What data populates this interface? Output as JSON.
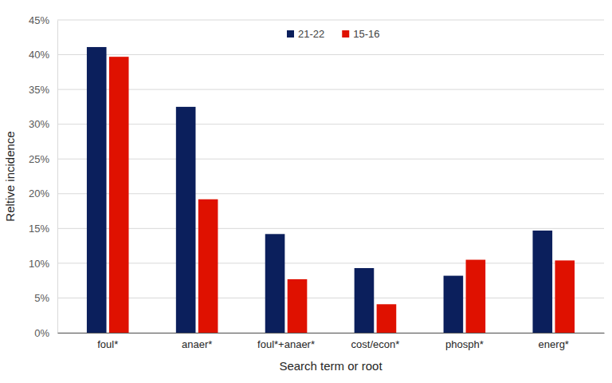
{
  "chart_data": {
    "type": "bar",
    "categories": [
      "foul*",
      "anaer*",
      "foul*+anaer*",
      "cost/econ*",
      "phosph*",
      "energ*"
    ],
    "series": [
      {
        "name": "21-22",
        "color": "#0b1f5c",
        "values": [
          41.1,
          32.5,
          14.2,
          9.3,
          8.2,
          14.7
        ]
      },
      {
        "name": "15-16",
        "color": "#df1100",
        "values": [
          39.7,
          19.2,
          7.7,
          4.1,
          10.5,
          10.4
        ]
      }
    ],
    "x_label": "Search term or root",
    "y_label": "Reltive incidence",
    "ylim": [
      0,
      45
    ],
    "yticks": [
      {
        "value": 0,
        "label": "0%"
      },
      {
        "value": 5,
        "label": "5%"
      },
      {
        "value": 10,
        "label": "10%"
      },
      {
        "value": 15,
        "label": "15%"
      },
      {
        "value": 20,
        "label": "20%"
      },
      {
        "value": 25,
        "label": "25%"
      },
      {
        "value": 30,
        "label": "30%"
      },
      {
        "value": 35,
        "label": "35%"
      },
      {
        "value": 40,
        "label": "40%"
      },
      {
        "value": 45,
        "label": "45%"
      }
    ],
    "grid": true,
    "legend": "top"
  }
}
